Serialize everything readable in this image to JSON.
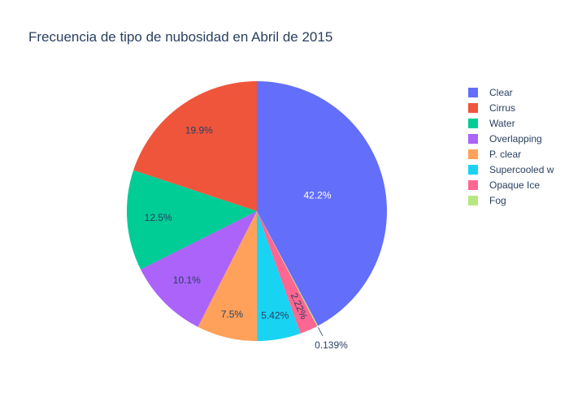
{
  "chart_data": {
    "type": "pie",
    "title": "Frecuencia de tipo de nubosidad en Abril de 2015",
    "direction": "clockwise",
    "start_angle": "top",
    "slices": [
      {
        "label": "Clear",
        "value": 42.2,
        "display": "42.2%",
        "color": "#636efa",
        "text_color": "#ffffff",
        "label_position": "inside"
      },
      {
        "label": "Fog",
        "value": 0.139,
        "display": "0.139%",
        "color": "#b6e880",
        "text_color": "#2a3f5f",
        "label_position": "outside"
      },
      {
        "label": "Opaque Ice",
        "value": 2.22,
        "display": "2.22%",
        "color": "#ff6692",
        "text_color": "#2a3f5f",
        "label_position": "inside-rotated"
      },
      {
        "label": "Supercooled w",
        "value": 5.42,
        "display": "5.42%",
        "color": "#19d3f3",
        "text_color": "#2a3f5f",
        "label_position": "inside"
      },
      {
        "label": "P. clear",
        "value": 7.5,
        "display": "7.5%",
        "color": "#ffa15a",
        "text_color": "#2a3f5f",
        "label_position": "inside"
      },
      {
        "label": "Overlapping",
        "value": 10.1,
        "display": "10.1%",
        "color": "#ab63fa",
        "text_color": "#2a3f5f",
        "label_position": "inside"
      },
      {
        "label": "Water",
        "value": 12.5,
        "display": "12.5%",
        "color": "#00cc96",
        "text_color": "#2a3f5f",
        "label_position": "inside"
      },
      {
        "label": "Cirrus",
        "value": 19.9,
        "display": "19.9%",
        "color": "#ef553b",
        "text_color": "#2a3f5f",
        "label_position": "inside"
      }
    ],
    "legend": {
      "placement": "top-right",
      "order": [
        "Clear",
        "Cirrus",
        "Water",
        "Overlapping",
        "P. clear",
        "Supercooled w",
        "Opaque Ice",
        "Fog"
      ]
    }
  }
}
